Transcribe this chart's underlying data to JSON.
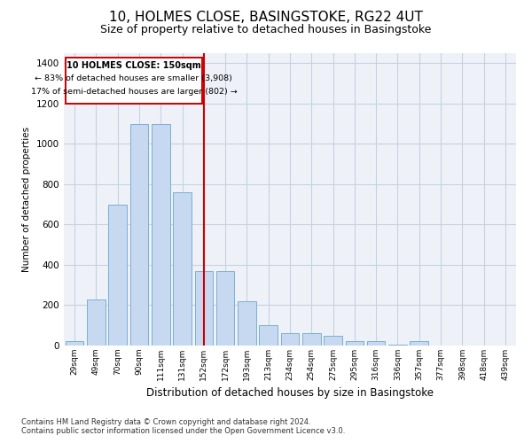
{
  "title1": "10, HOLMES CLOSE, BASINGSTOKE, RG22 4UT",
  "title2": "Size of property relative to detached houses in Basingstoke",
  "xlabel": "Distribution of detached houses by size in Basingstoke",
  "ylabel": "Number of detached properties",
  "footnote1": "Contains HM Land Registry data © Crown copyright and database right 2024.",
  "footnote2": "Contains public sector information licensed under the Open Government Licence v3.0.",
  "annotation_title": "10 HOLMES CLOSE: 150sqm",
  "annotation_line1": "← 83% of detached houses are smaller (3,908)",
  "annotation_line2": "17% of semi-detached houses are larger (802) →",
  "bar_labels": [
    "29sqm",
    "49sqm",
    "70sqm",
    "90sqm",
    "111sqm",
    "131sqm",
    "152sqm",
    "172sqm",
    "193sqm",
    "213sqm",
    "234sqm",
    "254sqm",
    "275sqm",
    "295sqm",
    "316sqm",
    "336sqm",
    "357sqm",
    "377sqm",
    "398sqm",
    "418sqm",
    "439sqm"
  ],
  "bar_values": [
    20,
    230,
    700,
    1100,
    1100,
    760,
    370,
    370,
    220,
    100,
    60,
    60,
    50,
    20,
    20,
    5,
    20,
    0,
    0,
    0,
    0
  ],
  "bar_color": "#c6d9f0",
  "bar_edge_color": "#7bafd4",
  "red_line_index": 6,
  "red_line_color": "#cc0000",
  "ylim": [
    0,
    1450
  ],
  "yticks": [
    0,
    200,
    400,
    600,
    800,
    1000,
    1200,
    1400
  ],
  "grid_color": "#c8d0e0",
  "bg_color": "#eef2f8",
  "annotation_box_color": "#cc0000",
  "title1_fontsize": 11,
  "title2_fontsize": 9
}
